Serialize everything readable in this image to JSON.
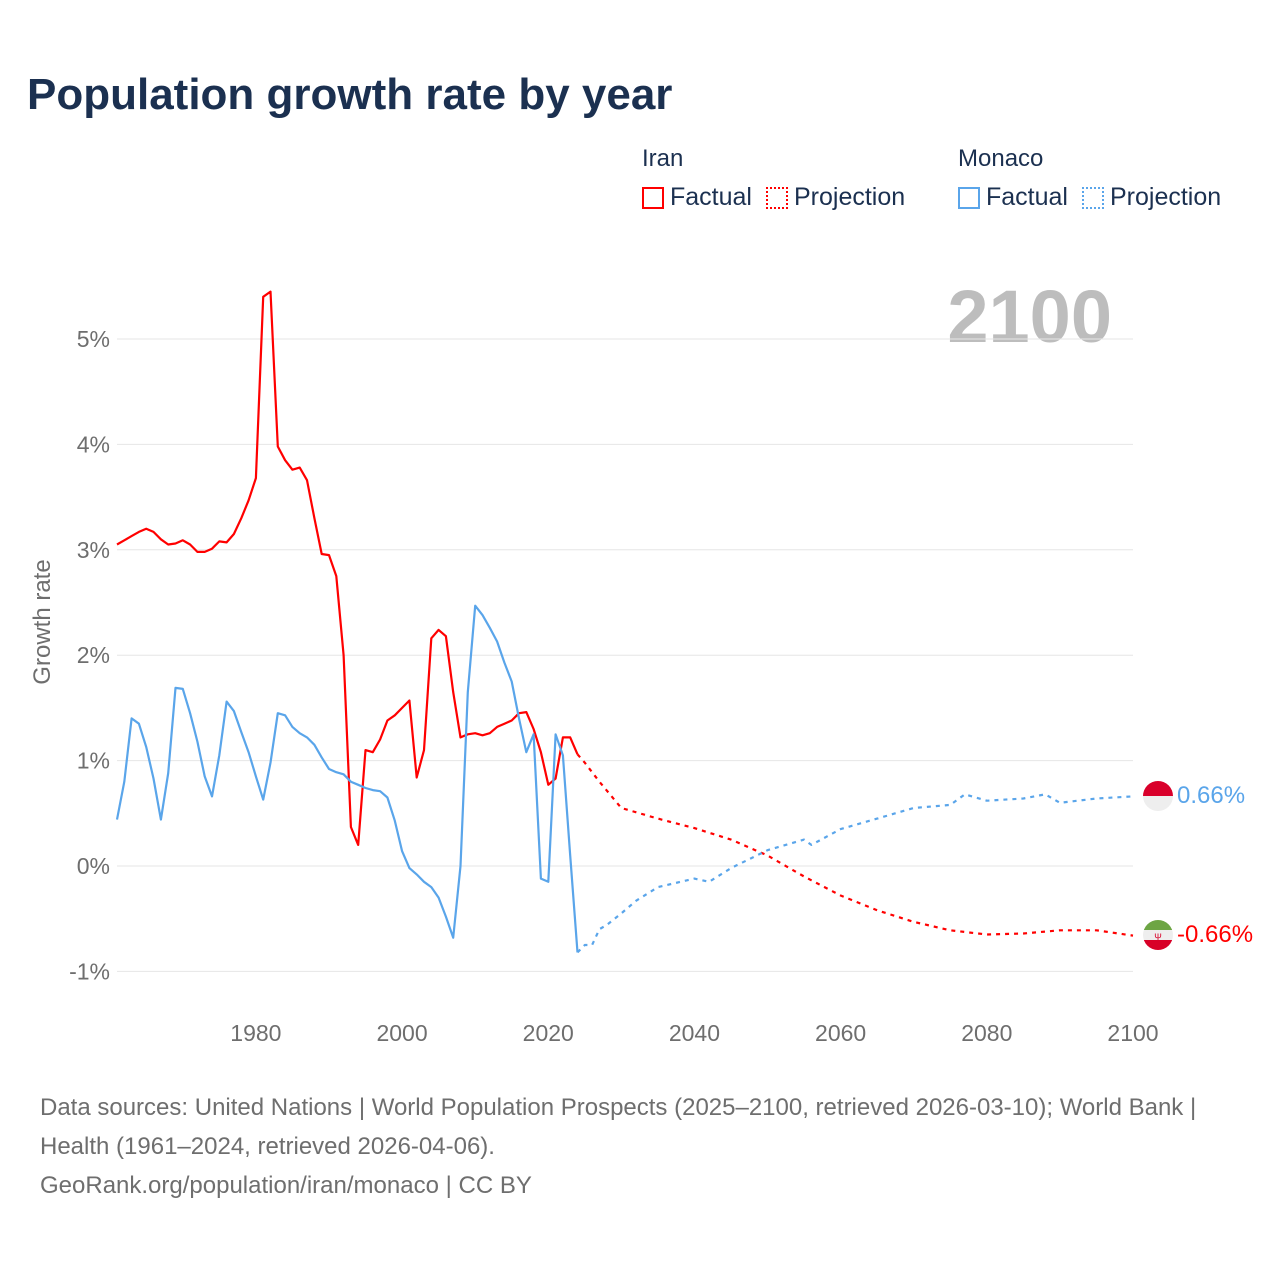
{
  "title": "Population growth rate by year",
  "legend": {
    "groups": [
      {
        "name": "Iran",
        "color": "#ff0000",
        "items": [
          "Factual",
          "Projection"
        ]
      },
      {
        "name": "Monaco",
        "color": "#5aa5ea",
        "items": [
          "Factual",
          "Projection"
        ]
      }
    ]
  },
  "year_watermark": "2100",
  "end_labels": {
    "monaco": "0.66%",
    "iran": "-0.66%"
  },
  "footer": {
    "sources": "Data sources: United Nations | World Population Prospects (2025–2100, retrieved 2026-03-10); World Bank | Health (1961–2024, retrieved 2026-04-06).",
    "credit": "GeoRank.org/population/iran/monaco | CC BY"
  },
  "chart_data": {
    "type": "line",
    "title": "Population growth rate by year",
    "ylabel": "Growth rate",
    "xlabel": "",
    "xlim": [
      1961,
      2100
    ],
    "ylim": [
      -1.3,
      5.9
    ],
    "yticks": [
      {
        "v": 5,
        "label": "5%"
      },
      {
        "v": 4,
        "label": "4%"
      },
      {
        "v": 3,
        "label": "3%"
      },
      {
        "v": 2,
        "label": "2%"
      },
      {
        "v": 1,
        "label": "1%"
      },
      {
        "v": 0,
        "label": "0%"
      },
      {
        "v": -1,
        "label": "-1%"
      }
    ],
    "xticks": [
      {
        "v": 1980,
        "label": "1980"
      },
      {
        "v": 2000,
        "label": "2000"
      },
      {
        "v": 2020,
        "label": "2020"
      },
      {
        "v": 2040,
        "label": "2040"
      },
      {
        "v": 2060,
        "label": "2060"
      },
      {
        "v": 2080,
        "label": "2080"
      },
      {
        "v": 2100,
        "label": "2100"
      }
    ],
    "grid": true,
    "legend_position": "top-right",
    "series": [
      {
        "name": "Iran Factual",
        "color": "#ff0000",
        "dashed": false,
        "x": [
          1961,
          1962,
          1963,
          1964,
          1965,
          1966,
          1967,
          1968,
          1969,
          1970,
          1971,
          1972,
          1973,
          1974,
          1975,
          1976,
          1977,
          1978,
          1979,
          1980,
          1981,
          1982,
          1983,
          1984,
          1985,
          1986,
          1987,
          1988,
          1989,
          1990,
          1991,
          1992,
          1993,
          1994,
          1995,
          1996,
          1997,
          1998,
          1999,
          2000,
          2001,
          2002,
          2003,
          2004,
          2005,
          2006,
          2007,
          2008,
          2009,
          2010,
          2011,
          2012,
          2013,
          2014,
          2015,
          2016,
          2017,
          2018,
          2019,
          2020,
          2021,
          2022,
          2023,
          2024
        ],
        "y": [
          3.05,
          3.09,
          3.13,
          3.17,
          3.2,
          3.17,
          3.1,
          3.05,
          3.06,
          3.09,
          3.05,
          2.98,
          2.98,
          3.01,
          3.08,
          3.07,
          3.15,
          3.3,
          3.47,
          3.68,
          5.4,
          5.45,
          3.98,
          3.85,
          3.76,
          3.78,
          3.66,
          3.3,
          2.96,
          2.95,
          2.75,
          2.0,
          0.37,
          0.2,
          1.1,
          1.08,
          1.2,
          1.38,
          1.43,
          1.5,
          1.57,
          0.84,
          1.1,
          2.16,
          2.24,
          2.18,
          1.65,
          1.22,
          1.25,
          1.26,
          1.24,
          1.26,
          1.32,
          1.35,
          1.38,
          1.45,
          1.46,
          1.3,
          1.08,
          0.77,
          0.83,
          1.22,
          1.22,
          1.06
        ]
      },
      {
        "name": "Iran Projection",
        "color": "#ff0000",
        "dashed": true,
        "x": [
          2024,
          2025,
          2027,
          2030,
          2035,
          2040,
          2045,
          2050,
          2055,
          2060,
          2065,
          2070,
          2075,
          2080,
          2085,
          2090,
          2095,
          2100
        ],
        "y": [
          1.06,
          0.98,
          0.8,
          0.55,
          0.45,
          0.36,
          0.25,
          0.1,
          -0.1,
          -0.28,
          -0.42,
          -0.53,
          -0.61,
          -0.65,
          -0.64,
          -0.61,
          -0.61,
          -0.66
        ]
      },
      {
        "name": "Monaco Factual",
        "color": "#5aa5ea",
        "dashed": false,
        "x": [
          1961,
          1962,
          1963,
          1964,
          1965,
          1966,
          1967,
          1968,
          1969,
          1970,
          1971,
          1972,
          1973,
          1974,
          1975,
          1976,
          1977,
          1978,
          1979,
          1980,
          1981,
          1982,
          1983,
          1984,
          1985,
          1986,
          1987,
          1988,
          1989,
          1990,
          1991,
          1992,
          1993,
          1994,
          1995,
          1996,
          1997,
          1998,
          1999,
          2000,
          2001,
          2002,
          2003,
          2004,
          2005,
          2006,
          2007,
          2008,
          2009,
          2010,
          2011,
          2012,
          2013,
          2014,
          2015,
          2016,
          2017,
          2018,
          2019,
          2020,
          2021,
          2022,
          2023,
          2024
        ],
        "y": [
          0.44,
          0.8,
          1.4,
          1.35,
          1.13,
          0.83,
          0.44,
          0.88,
          1.69,
          1.68,
          1.45,
          1.18,
          0.85,
          0.66,
          1.05,
          1.56,
          1.47,
          1.27,
          1.08,
          0.85,
          0.63,
          0.98,
          1.45,
          1.43,
          1.32,
          1.26,
          1.22,
          1.15,
          1.03,
          0.92,
          0.89,
          0.87,
          0.8,
          0.77,
          0.74,
          0.72,
          0.71,
          0.65,
          0.43,
          0.14,
          -0.02,
          -0.08,
          -0.15,
          -0.2,
          -0.3,
          -0.48,
          -0.68,
          0.0,
          1.65,
          2.47,
          2.38,
          2.26,
          2.13,
          1.93,
          1.75,
          1.4,
          1.08,
          1.25,
          -0.12,
          -0.15,
          1.25,
          1.05,
          0.1,
          -0.82
        ]
      },
      {
        "name": "Monaco Projection",
        "color": "#5aa5ea",
        "dashed": true,
        "x": [
          2024,
          2025,
          2026,
          2027,
          2028,
          2030,
          2032,
          2035,
          2040,
          2042,
          2045,
          2050,
          2055,
          2056,
          2060,
          2065,
          2070,
          2075,
          2077,
          2080,
          2085,
          2088,
          2090,
          2095,
          2100
        ],
        "y": [
          -0.82,
          -0.75,
          -0.75,
          -0.6,
          -0.56,
          -0.45,
          -0.33,
          -0.2,
          -0.12,
          -0.15,
          -0.02,
          0.15,
          0.25,
          0.2,
          0.35,
          0.45,
          0.55,
          0.58,
          0.68,
          0.62,
          0.64,
          0.68,
          0.6,
          0.64,
          0.66
        ]
      }
    ]
  }
}
